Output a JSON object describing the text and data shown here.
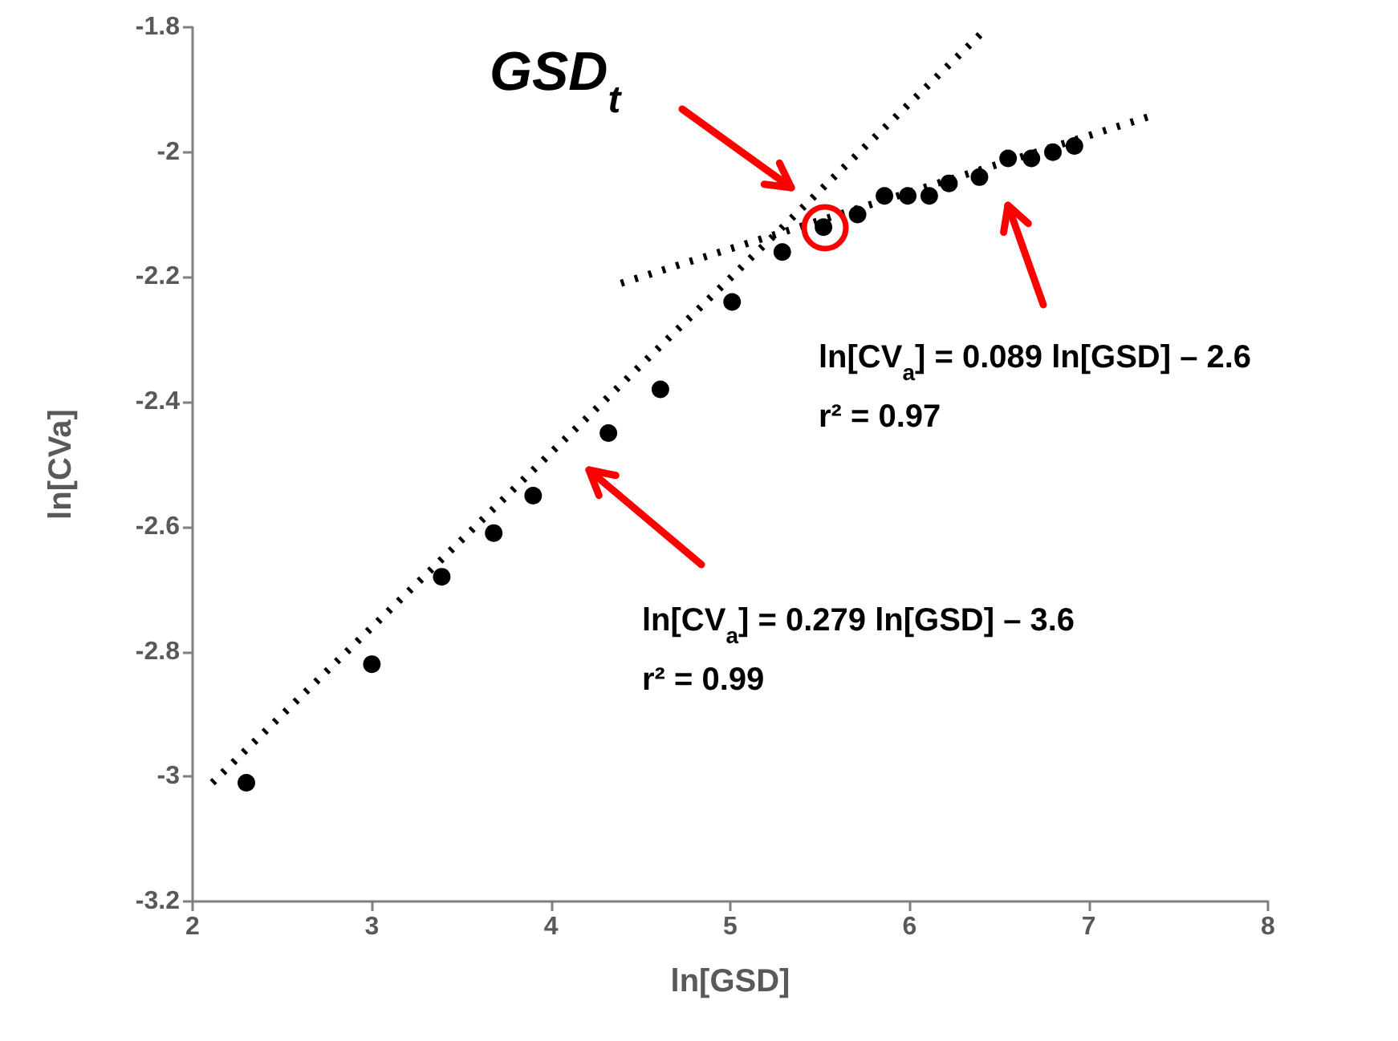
{
  "chart_data": {
    "type": "scatter",
    "xlabel": "ln[GSD]",
    "ylabel": "ln[CVa]",
    "xlim": [
      2,
      8
    ],
    "xticks": [
      2,
      3,
      4,
      5,
      6,
      7,
      8
    ],
    "ylim": [
      -3.2,
      -1.8
    ],
    "yticks": [
      -3.2,
      -3,
      -2.8,
      -2.6,
      -2.4,
      -2.2,
      -2,
      -1.8
    ],
    "grid": false,
    "marker": "circle",
    "series": [
      {
        "color": "#000000",
        "x": [
          2.3,
          3.0,
          3.39,
          3.68,
          3.9,
          4.32,
          4.61,
          5.01,
          5.29,
          5.52,
          5.71,
          5.86,
          5.99,
          6.11,
          6.22,
          6.39,
          6.55,
          6.68,
          6.8,
          6.92
        ],
        "values": [
          -3.01,
          -2.82,
          -2.68,
          -2.61,
          -2.55,
          -2.45,
          -2.38,
          -2.24,
          -2.16,
          -2.12,
          -2.1,
          -2.07,
          -2.07,
          -2.07,
          -2.05,
          -2.04,
          -2.01,
          -2.01,
          -2.0,
          -1.99
        ]
      },
      {
        "type": "line",
        "color": "#000000",
        "line_style": "dotted",
        "marker": "none",
        "x": [
          2.11,
          6.4
        ],
        "values": [
          -3.01,
          -1.81
        ]
      },
      {
        "type": "line",
        "color": "#000000",
        "line_style": "dotted",
        "marker": "none",
        "x": [
          4.39,
          7.37
        ],
        "values": [
          -2.21,
          -1.94
        ]
      }
    ],
    "annotations": [
      "GSD$_{t}$",
      "ln[CV$_{a}$] = 0.089 ln[GSD] – 2.6\nr² = 0.97",
      "ln[CV$_{a}$] = 0.279 ln[GSD] – 3.6\nr² = 0.99"
    ]
  }
}
